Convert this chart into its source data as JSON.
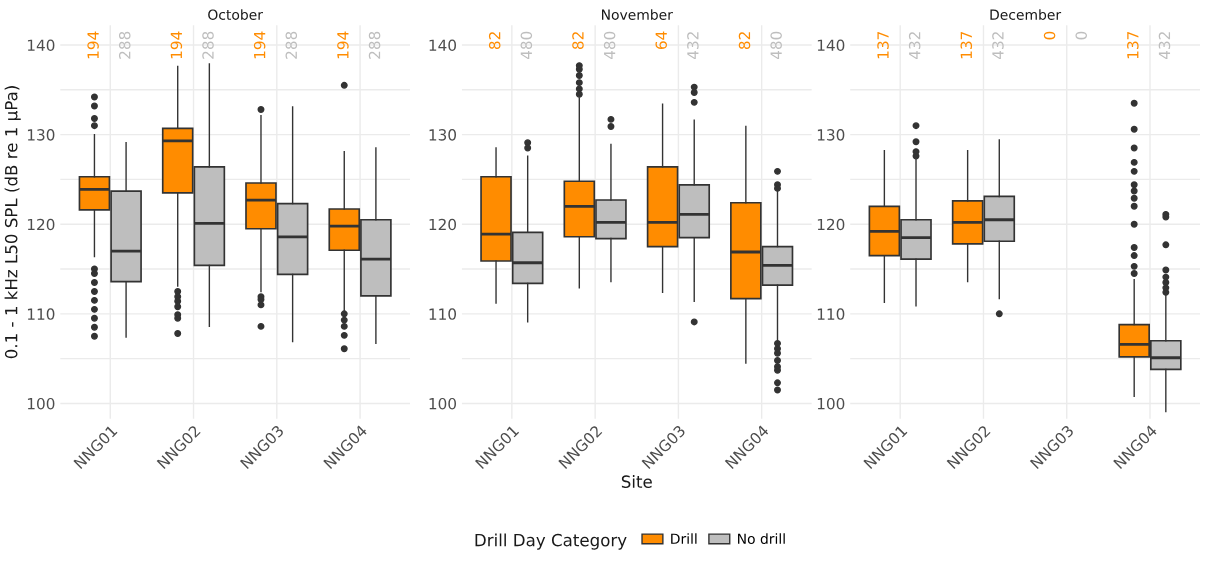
{
  "chart_data": [
    {
      "type": "box",
      "title": "October",
      "legend": "bottom",
      "legend_title": "Drill Day Category",
      "ylabel": "0.1 - 1 kHz L50 SPL (dB re 1 µPa)",
      "categories": [
        "NNG01",
        "NNG02",
        "NNG03",
        "NNG04"
      ],
      "ylim": [
        98.3,
        142.2
      ],
      "yticks": [
        100,
        {
          "value": 105,
          "label": null
        },
        110,
        {
          "value": 115,
          "label": null
        },
        120,
        {
          "value": 125,
          "label": null
        },
        130,
        {
          "value": 135,
          "label": null
        },
        140
      ],
      "grid": true,
      "series": [
        {
          "name": "Drill",
          "color": "#ff8c00",
          "value_labels": [
            "194",
            "194",
            "194",
            "194"
          ],
          "boxes": [
            {
              "low": 116.4,
              "q1": 121.6,
              "median": 123.9,
              "q3": 125.3,
              "high": 130.0,
              "outliers": [
                134.2,
                133.2,
                131.8,
                131.0,
                115.0,
                114.5,
                113.5,
                112.5,
                111.5,
                110.5,
                109.5,
                108.5,
                107.5
              ]
            },
            {
              "low": 113.1,
              "q1": 123.5,
              "median": 129.3,
              "q3": 130.7,
              "high": 137.6,
              "outliers": [
                112.5,
                111.9,
                111.4,
                110.8,
                109.9,
                109.5,
                107.8
              ]
            },
            {
              "low": 112.5,
              "q1": 119.5,
              "median": 122.7,
              "q3": 124.6,
              "high": 132.1,
              "outliers": [
                132.8,
                111.9,
                111.6,
                111.0,
                108.6
              ]
            },
            {
              "low": 110.4,
              "q1": 117.1,
              "median": 119.8,
              "q3": 121.7,
              "high": 128.1,
              "outliers": [
                135.5,
                110.0,
                109.3,
                108.6,
                107.6,
                106.1
              ]
            }
          ]
        },
        {
          "name": "No drill",
          "color": "#bebebe",
          "value_labels": [
            "288",
            "288",
            "288",
            "288"
          ],
          "boxes": [
            {
              "low": 107.4,
              "q1": 113.6,
              "median": 117.0,
              "q3": 123.7,
              "high": 129.1
            },
            {
              "low": 108.6,
              "q1": 115.4,
              "median": 120.1,
              "q3": 126.4,
              "high": 137.9
            },
            {
              "low": 106.9,
              "q1": 114.4,
              "median": 118.6,
              "q3": 122.3,
              "high": 133.1
            },
            {
              "low": 106.7,
              "q1": 112.0,
              "median": 116.1,
              "q3": 120.5,
              "high": 128.5
            }
          ]
        }
      ]
    },
    {
      "type": "box",
      "title": "November",
      "xlabel": "Site",
      "categories": [
        "NNG01",
        "NNG02",
        "NNG03",
        "NNG04"
      ],
      "ylim": [
        98.3,
        142.2
      ],
      "yticks": [
        100,
        {
          "value": 105,
          "label": null
        },
        110,
        {
          "value": 115,
          "label": null
        },
        120,
        {
          "value": 125,
          "label": null
        },
        130,
        {
          "value": 135,
          "label": null
        },
        140
      ],
      "grid": true,
      "series": [
        {
          "color": "#ff8c00",
          "value_labels": [
            "82",
            "82",
            "64",
            "82"
          ],
          "boxes": [
            {
              "low": 111.2,
              "q1": 115.9,
              "median": 118.9,
              "q3": 125.3,
              "high": 128.5
            },
            {
              "low": 112.9,
              "q1": 118.6,
              "median": 122.0,
              "q3": 124.8,
              "high": 134.1,
              "outliers": [
                137.7,
                137.3,
                136.6,
                135.8,
                135.1,
                134.5
              ]
            },
            {
              "low": 112.4,
              "q1": 117.5,
              "median": 120.2,
              "q3": 126.4,
              "high": 133.4
            },
            {
              "low": 104.5,
              "q1": 111.7,
              "median": 116.9,
              "q3": 122.4,
              "high": 130.9
            }
          ]
        },
        {
          "color": "#bebebe",
          "value_labels": [
            "480",
            "480",
            "432",
            "480"
          ],
          "boxes": [
            {
              "low": 109.1,
              "q1": 113.4,
              "median": 115.7,
              "q3": 119.1,
              "high": 127.6,
              "outliers": [
                129.1,
                128.5
              ]
            },
            {
              "low": 113.6,
              "q1": 118.4,
              "median": 120.2,
              "q3": 122.7,
              "high": 128.9,
              "outliers": [
                131.7,
                130.9
              ]
            },
            {
              "low": 111.4,
              "q1": 118.5,
              "median": 121.1,
              "q3": 124.4,
              "high": 131.6,
              "outliers": [
                135.3,
                134.7,
                133.6,
                109.1
              ]
            },
            {
              "low": 106.9,
              "q1": 113.2,
              "median": 115.4,
              "q3": 117.5,
              "high": 124.2,
              "outliers": [
                125.9,
                124.4,
                124.0,
                106.7,
                106.1,
                105.6,
                104.8,
                104.1,
                103.7,
                102.3,
                101.5
              ]
            }
          ]
        }
      ]
    },
    {
      "type": "box",
      "title": "December",
      "categories": [
        "NNG01",
        "NNG02",
        "NNG03",
        "NNG04"
      ],
      "ylim": [
        98.3,
        142.2
      ],
      "yticks": [
        100,
        {
          "value": 105,
          "label": null
        },
        110,
        {
          "value": 115,
          "label": null
        },
        120,
        {
          "value": 125,
          "label": null
        },
        130,
        {
          "value": 135,
          "label": null
        },
        140
      ],
      "grid": true,
      "series": [
        {
          "color": "#ff8c00",
          "value_labels": [
            "137",
            "137",
            "0",
            "137"
          ],
          "boxes": [
            {
              "low": 111.3,
              "q1": 116.5,
              "median": 119.2,
              "q3": 122.0,
              "high": 128.2
            },
            {
              "low": 113.6,
              "q1": 117.8,
              "median": 120.2,
              "q3": 122.6,
              "high": 128.2
            },
            null,
            {
              "low": 100.8,
              "q1": 105.2,
              "median": 106.6,
              "q3": 108.8,
              "high": 113.8,
              "outliers": [
                133.5,
                130.6,
                128.5,
                126.9,
                125.9,
                124.4,
                123.7,
                122.9,
                122.0,
                120.0,
                117.4,
                116.5,
                115.3,
                114.5
              ]
            }
          ]
        },
        {
          "color": "#bebebe",
          "value_labels": [
            "432",
            "432",
            "0",
            "432"
          ],
          "boxes": [
            {
              "low": 110.9,
              "q1": 116.1,
              "median": 118.5,
              "q3": 120.5,
              "high": 127.2,
              "outliers": [
                131.0,
                129.2,
                128.1,
                127.6
              ]
            },
            {
              "low": 111.7,
              "q1": 118.1,
              "median": 120.5,
              "q3": 123.1,
              "high": 129.4,
              "outliers": [
                110.0
              ]
            },
            null,
            {
              "low": 99.1,
              "q1": 103.8,
              "median": 105.1,
              "q3": 107.0,
              "high": 112.2,
              "outliers": [
                121.1,
                120.8,
                117.7,
                114.9,
                114.1,
                113.5,
                112.9,
                112.4
              ]
            }
          ]
        }
      ]
    }
  ]
}
